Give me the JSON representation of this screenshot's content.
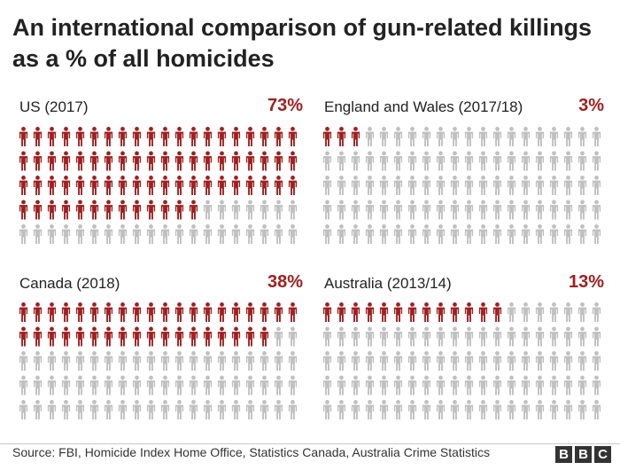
{
  "title": "An international comparison of gun-related killings as a % of all homicides",
  "colors": {
    "highlight": "#a01f1f",
    "base": "#c0c0c0"
  },
  "chart_data": [
    {
      "type": "pictograph",
      "label": "US (2017)",
      "value_label": "73%",
      "value": 73,
      "total": 100
    },
    {
      "type": "pictograph",
      "label": "England and Wales (2017/18)",
      "value_label": "3%",
      "value": 3,
      "total": 100
    },
    {
      "type": "pictograph",
      "label": "Canada (2018)",
      "value_label": "38%",
      "value": 38,
      "total": 100
    },
    {
      "type": "pictograph",
      "label": "Australia (2013/14)",
      "value_label": "13%",
      "value": 13,
      "total": 100
    }
  ],
  "footer": {
    "source": "Source: FBI, Homicide Index Home Office, Statistics Canada, Australia Crime Statistics",
    "logo_letters": [
      "B",
      "B",
      "C"
    ]
  }
}
